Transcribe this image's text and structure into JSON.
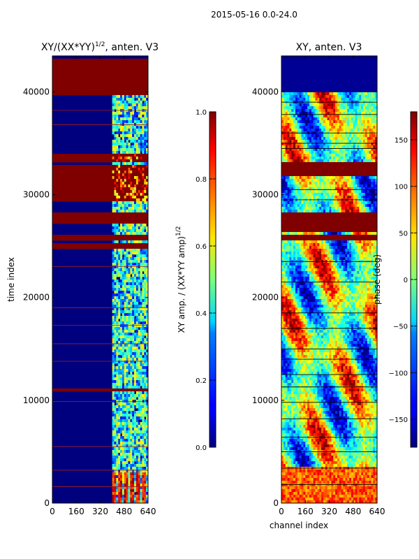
{
  "suptitle": "2015-05-16 0.0-24.0",
  "colors": {
    "low": "#00007f",
    "high": "#7f0000",
    "colormap": "jet",
    "gridline_dark": "#000000",
    "gridline_red": "#a02020"
  },
  "chart_data": [
    {
      "type": "heatmap",
      "title": "XY/(XX*YY)^(1/2), anten. V3",
      "title_main": "XY/(XX*YY)",
      "title_sup": "1/2",
      "title_rest": ", anten. V3",
      "xlabel": "",
      "ylabel": "time index",
      "xlim": [
        0,
        640
      ],
      "ylim": [
        0,
        43500
      ],
      "xticks": [
        "0",
        "160",
        "320",
        "480",
        "640"
      ],
      "yticks": [
        "0",
        "10000",
        "20000",
        "30000",
        "40000"
      ],
      "colorbar": {
        "label": "XY amp. / (XX*YY amp)^(1/2)",
        "label_main": "XY amp. / (XX*YY amp)",
        "label_sup": "1/2",
        "range": [
          0.0,
          1.0
        ],
        "ticks": [
          "0.0",
          "0.2",
          "0.4",
          "0.6",
          "0.8",
          "1.0"
        ]
      },
      "flagged_time_bands": [
        [
          39800,
          43200
        ],
        [
          33200,
          34000
        ],
        [
          29400,
          33000
        ],
        [
          27200,
          28200
        ],
        [
          25500,
          26200
        ],
        [
          24800,
          25200
        ],
        [
          10800,
          11200
        ]
      ],
      "structure_channel_range": [
        400,
        640
      ]
    },
    {
      "type": "heatmap",
      "title": "XY, anten. V3",
      "xlabel": "channel index",
      "ylabel": "",
      "xlim": [
        0,
        640
      ],
      "ylim": [
        0,
        43500
      ],
      "xticks": [
        "0",
        "160",
        "320",
        "480",
        "640"
      ],
      "yticks": [
        "0",
        "10000",
        "20000",
        "30000",
        "40000"
      ],
      "colorbar": {
        "label": "phase (deg)",
        "range": [
          -180,
          180
        ],
        "ticks": [
          "−150",
          "−100",
          "−50",
          "0",
          "50",
          "100",
          "150"
        ]
      },
      "flagged_time_bands": [
        [
          40000,
          43200
        ],
        [
          31800,
          33200
        ],
        [
          26500,
          28400
        ],
        [
          25500,
          26200
        ]
      ]
    }
  ]
}
